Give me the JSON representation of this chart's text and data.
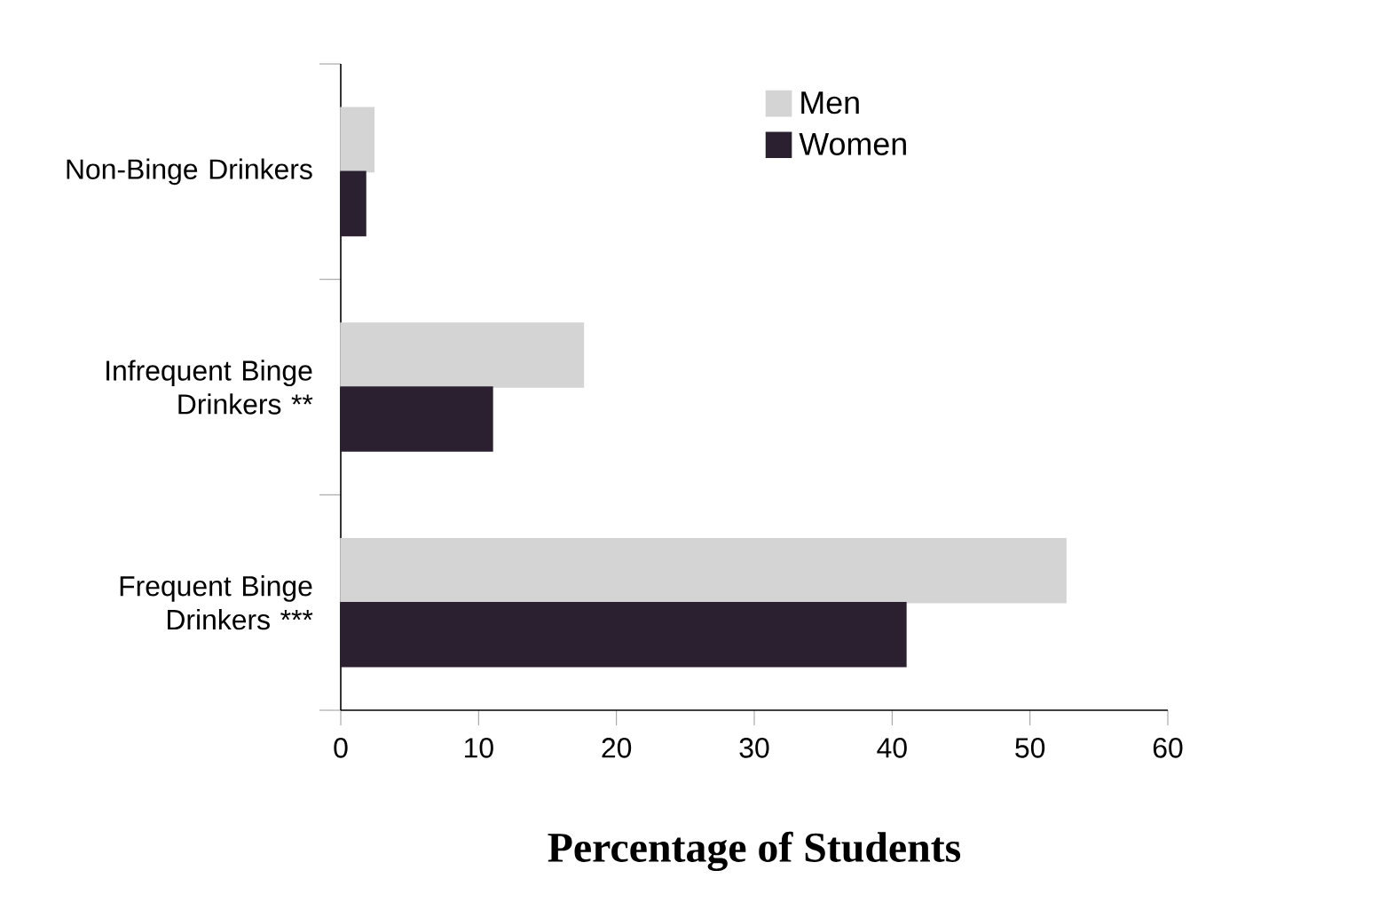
{
  "chart_data": {
    "type": "bar",
    "orientation": "horizontal",
    "xlabel": "Percentage of Students",
    "categories": [
      "Non-Binge Drinkers",
      "Infrequent Binge Drinkers **",
      "Frequent Binge Drinkers ***"
    ],
    "series": [
      {
        "name": "Men",
        "color": "#d4d4d4",
        "values": [
          2.4,
          17.6,
          52.6
        ]
      },
      {
        "name": "Women",
        "color": "#2a2030",
        "values": [
          1.8,
          11,
          41
        ]
      }
    ],
    "xlim": [
      0,
      60
    ],
    "xticks": [
      0,
      10,
      20,
      30,
      40,
      50,
      60
    ],
    "grid": false,
    "legend": "top"
  }
}
